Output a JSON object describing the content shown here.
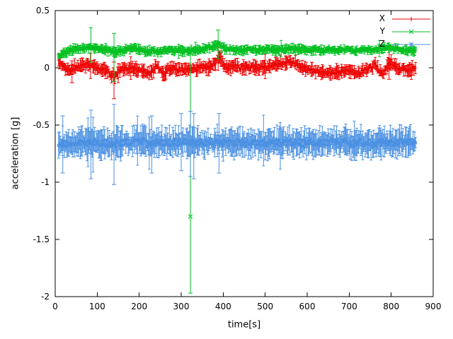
{
  "chart_data": {
    "type": "scatter",
    "title": "",
    "xlabel": "time[s]",
    "ylabel": "acceleration [g]",
    "xlim": [
      0,
      900
    ],
    "ylim": [
      -2,
      0.5
    ],
    "xticks": [
      0,
      100,
      200,
      300,
      400,
      500,
      600,
      700,
      800,
      900
    ],
    "yticks": [
      0.5,
      0,
      -0.5,
      -1,
      -1.5,
      -2
    ],
    "grid": false,
    "legend_position": "top-right-inside",
    "series": [
      {
        "name": "X",
        "color": "#ee0000",
        "marker": "plus",
        "baseline": 0.0,
        "noise": 0.018,
        "errorbar": 0.05,
        "step": 2,
        "range": [
          8,
          858
        ],
        "anchors": [
          [
            8,
            0.05
          ],
          [
            15,
            0.03
          ],
          [
            25,
            -0.01
          ],
          [
            35,
            -0.02
          ],
          [
            45,
            0.0
          ],
          [
            55,
            0.01
          ],
          [
            65,
            0.02
          ],
          [
            75,
            0.02
          ],
          [
            85,
            0.03
          ],
          [
            95,
            0.01
          ],
          [
            105,
            0.0
          ],
          [
            115,
            -0.01
          ],
          [
            125,
            -0.03
          ],
          [
            135,
            -0.07
          ],
          [
            142,
            -0.08
          ],
          [
            150,
            -0.03
          ],
          [
            160,
            0.0
          ],
          [
            175,
            -0.01
          ],
          [
            190,
            -0.01
          ],
          [
            205,
            -0.02
          ],
          [
            215,
            -0.03
          ],
          [
            225,
            -0.06
          ],
          [
            235,
            -0.01
          ],
          [
            242,
            0.02
          ],
          [
            250,
            -0.02
          ],
          [
            258,
            -0.06
          ],
          [
            268,
            -0.02
          ],
          [
            278,
            0.0
          ],
          [
            290,
            -0.03
          ],
          [
            300,
            -0.01
          ],
          [
            312,
            -0.02
          ],
          [
            322,
            0.0
          ],
          [
            335,
            -0.01
          ],
          [
            350,
            0.01
          ],
          [
            362,
            0.0
          ],
          [
            375,
            0.02
          ],
          [
            385,
            0.06
          ],
          [
            392,
            0.1
          ],
          [
            398,
            0.05
          ],
          [
            405,
            0.01
          ],
          [
            415,
            0.0
          ],
          [
            430,
            0.01
          ],
          [
            445,
            0.0
          ],
          [
            460,
            0.01
          ],
          [
            475,
            0.0
          ],
          [
            490,
            0.0
          ],
          [
            505,
            0.01
          ],
          [
            520,
            0.02
          ],
          [
            535,
            0.04
          ],
          [
            550,
            0.05
          ],
          [
            565,
            0.05
          ],
          [
            578,
            0.02
          ],
          [
            590,
            0.0
          ],
          [
            605,
            -0.02
          ],
          [
            620,
            -0.03
          ],
          [
            635,
            -0.04
          ],
          [
            650,
            -0.05
          ],
          [
            665,
            -0.04
          ],
          [
            678,
            -0.03
          ],
          [
            690,
            -0.02
          ],
          [
            702,
            -0.03
          ],
          [
            715,
            -0.04
          ],
          [
            728,
            -0.04
          ],
          [
            740,
            -0.02
          ],
          [
            752,
            0.0
          ],
          [
            762,
            0.03
          ],
          [
            772,
            -0.03
          ],
          [
            782,
            -0.05
          ],
          [
            792,
            0.02
          ],
          [
            800,
            0.04
          ],
          [
            808,
            0.02
          ],
          [
            818,
            -0.01
          ],
          [
            832,
            -0.01
          ],
          [
            845,
            -0.02
          ],
          [
            858,
            -0.01
          ]
        ],
        "outliers": [
          [
            140,
            -0.08,
            -0.27,
            0.05
          ],
          [
            40,
            -0.02,
            -0.13,
            0.06
          ],
          [
            795,
            0.04,
            -0.1,
            0.16
          ]
        ]
      },
      {
        "name": "Y",
        "color": "#00c020",
        "marker": "cross",
        "baseline": 0.16,
        "noise": 0.012,
        "errorbar": 0.035,
        "step": 2,
        "range": [
          8,
          858
        ],
        "anchors": [
          [
            8,
            0.11
          ],
          [
            18,
            0.12
          ],
          [
            28,
            0.14
          ],
          [
            40,
            0.16
          ],
          [
            55,
            0.17
          ],
          [
            70,
            0.17
          ],
          [
            85,
            0.18
          ],
          [
            100,
            0.17
          ],
          [
            115,
            0.16
          ],
          [
            130,
            0.15
          ],
          [
            142,
            0.14
          ],
          [
            155,
            0.15
          ],
          [
            170,
            0.16
          ],
          [
            185,
            0.17
          ],
          [
            200,
            0.16
          ],
          [
            215,
            0.15
          ],
          [
            230,
            0.15
          ],
          [
            245,
            0.14
          ],
          [
            260,
            0.15
          ],
          [
            275,
            0.16
          ],
          [
            290,
            0.15
          ],
          [
            305,
            0.15
          ],
          [
            322,
            0.15
          ],
          [
            340,
            0.16
          ],
          [
            355,
            0.17
          ],
          [
            370,
            0.18
          ],
          [
            382,
            0.2
          ],
          [
            390,
            0.21
          ],
          [
            398,
            0.18
          ],
          [
            410,
            0.16
          ],
          [
            425,
            0.16
          ],
          [
            440,
            0.15
          ],
          [
            455,
            0.16
          ],
          [
            470,
            0.16
          ],
          [
            485,
            0.15
          ],
          [
            500,
            0.16
          ],
          [
            515,
            0.16
          ],
          [
            530,
            0.15
          ],
          [
            545,
            0.16
          ],
          [
            560,
            0.17
          ],
          [
            575,
            0.16
          ],
          [
            590,
            0.16
          ],
          [
            605,
            0.15
          ],
          [
            620,
            0.16
          ],
          [
            635,
            0.15
          ],
          [
            650,
            0.16
          ],
          [
            665,
            0.15
          ],
          [
            680,
            0.16
          ],
          [
            695,
            0.16
          ],
          [
            710,
            0.15
          ],
          [
            725,
            0.16
          ],
          [
            740,
            0.16
          ],
          [
            755,
            0.15
          ],
          [
            770,
            0.16
          ],
          [
            782,
            0.17
          ],
          [
            795,
            0.18
          ],
          [
            808,
            0.17
          ],
          [
            820,
            0.16
          ],
          [
            835,
            0.15
          ],
          [
            848,
            0.15
          ],
          [
            858,
            0.15
          ]
        ],
        "outliers": [
          [
            322,
            -1.3,
            -1.97,
            0.12
          ],
          [
            85,
            0.18,
            0.05,
            0.35
          ],
          [
            140,
            0.14,
            -0.12,
            0.3
          ],
          [
            388,
            0.21,
            0.08,
            0.33
          ]
        ]
      },
      {
        "name": "Z",
        "color": "#4a90e2",
        "marker": "star",
        "baseline": -0.65,
        "noise": 0.03,
        "errorbar": 0.11,
        "step": 2,
        "range": [
          8,
          858
        ],
        "anchors": [
          [
            8,
            -0.66
          ],
          [
            20,
            -0.66
          ],
          [
            35,
            -0.65
          ],
          [
            50,
            -0.66
          ],
          [
            65,
            -0.65
          ],
          [
            80,
            -0.66
          ],
          [
            95,
            -0.65
          ],
          [
            110,
            -0.66
          ],
          [
            125,
            -0.66
          ],
          [
            140,
            -0.67
          ],
          [
            155,
            -0.66
          ],
          [
            170,
            -0.65
          ],
          [
            185,
            -0.65
          ],
          [
            200,
            -0.64
          ],
          [
            215,
            -0.65
          ],
          [
            230,
            -0.66
          ],
          [
            245,
            -0.65
          ],
          [
            260,
            -0.66
          ],
          [
            275,
            -0.65
          ],
          [
            290,
            -0.66
          ],
          [
            305,
            -0.65
          ],
          [
            320,
            -0.66
          ],
          [
            335,
            -0.66
          ],
          [
            350,
            -0.65
          ],
          [
            365,
            -0.66
          ],
          [
            380,
            -0.65
          ],
          [
            395,
            -0.66
          ],
          [
            410,
            -0.65
          ],
          [
            425,
            -0.66
          ],
          [
            440,
            -0.65
          ],
          [
            455,
            -0.66
          ],
          [
            470,
            -0.65
          ],
          [
            485,
            -0.66
          ],
          [
            500,
            -0.66
          ],
          [
            515,
            -0.65
          ],
          [
            530,
            -0.66
          ],
          [
            545,
            -0.65
          ],
          [
            560,
            -0.66
          ],
          [
            575,
            -0.65
          ],
          [
            590,
            -0.66
          ],
          [
            605,
            -0.65
          ],
          [
            620,
            -0.65
          ],
          [
            635,
            -0.66
          ],
          [
            650,
            -0.65
          ],
          [
            665,
            -0.65
          ],
          [
            680,
            -0.66
          ],
          [
            695,
            -0.65
          ],
          [
            710,
            -0.66
          ],
          [
            725,
            -0.65
          ],
          [
            740,
            -0.65
          ],
          [
            755,
            -0.66
          ],
          [
            770,
            -0.65
          ],
          [
            785,
            -0.65
          ],
          [
            800,
            -0.66
          ],
          [
            815,
            -0.65
          ],
          [
            830,
            -0.65
          ],
          [
            845,
            -0.65
          ],
          [
            858,
            -0.65
          ]
        ],
        "outliers": [
          [
            18,
            -0.66,
            -0.92,
            -0.42
          ],
          [
            85,
            -0.66,
            -0.97,
            -0.37
          ],
          [
            140,
            -0.67,
            -1.02,
            -0.32
          ],
          [
            230,
            -0.66,
            -0.92,
            -0.42
          ],
          [
            300,
            -0.66,
            -0.9,
            -0.4
          ],
          [
            322,
            -0.66,
            -0.95,
            -0.38
          ],
          [
            330,
            -0.66,
            -0.97,
            -0.4
          ],
          [
            390,
            -0.66,
            -0.92,
            -0.4
          ]
        ]
      }
    ]
  }
}
